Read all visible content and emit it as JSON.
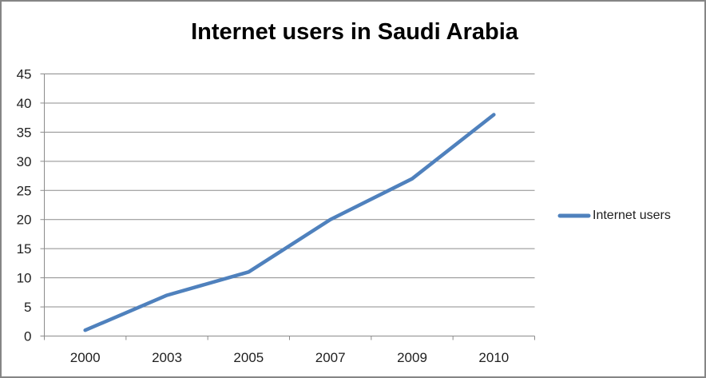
{
  "window": {
    "background_color": "#ffffff",
    "frame_color": "#858585"
  },
  "chart_data": {
    "type": "line",
    "title": "Internet users in Saudi Arabia",
    "categories": [
      "2000",
      "2003",
      "2005",
      "2007",
      "2009",
      "2010"
    ],
    "series": [
      {
        "name": "Internet users",
        "values": [
          1,
          7,
          11,
          20,
          27,
          38
        ],
        "color": "#4F81BD"
      }
    ],
    "xlabel": "",
    "ylabel": "",
    "ylim": [
      0,
      45
    ],
    "yticks": [
      0,
      5,
      10,
      15,
      20,
      25,
      30,
      35,
      40,
      45
    ],
    "grid": true,
    "gridline_color": "#8C8C8C",
    "axis_color": "#8C8C8C",
    "tick_label_color": "#1f1f1f",
    "line_color": "#4F81BD",
    "legend_position": "right"
  },
  "legend": {
    "label": "Internet users"
  }
}
